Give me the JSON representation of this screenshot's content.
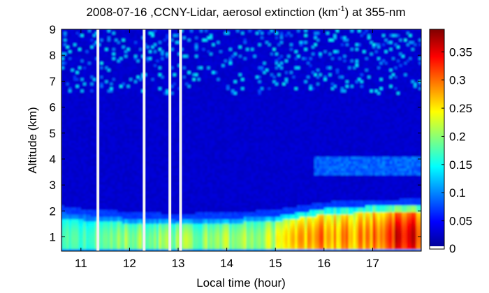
{
  "chart_data": {
    "type": "heatmap",
    "title": "2008-07-16 ,CCNY-Lidar, aerosol extinction (km",
    "title_exponent": "-1",
    "title_suffix": ") at 355-nm",
    "xlabel": "Local time (hour)",
    "ylabel": "Altitude (km)",
    "xlim": [
      10.6,
      18.0
    ],
    "ylim": [
      0.45,
      9.0
    ],
    "x_ticks": [
      "11",
      "12",
      "13",
      "14",
      "15",
      "16",
      "17"
    ],
    "y_ticks": [
      "1",
      "2",
      "3",
      "4",
      "5",
      "6",
      "7",
      "8",
      "9"
    ],
    "colorbar": {
      "range": [
        0,
        0.39
      ],
      "ticks": [
        "0",
        "0.05",
        "0.1",
        "0.15",
        "0.2",
        "0.25",
        "0.3",
        "0.35"
      ]
    },
    "data_gaps_hour": [
      11.35,
      12.3,
      12.83,
      13.05
    ],
    "boundary_layer": {
      "hours": [
        10.6,
        11.0,
        11.5,
        12.0,
        12.5,
        13.0,
        13.5,
        14.0,
        14.5,
        15.0,
        15.5,
        16.0,
        16.5,
        17.0,
        17.5,
        18.0
      ],
      "top_km": [
        1.95,
        1.85,
        1.8,
        1.72,
        1.68,
        1.65,
        1.68,
        1.72,
        1.75,
        1.8,
        1.95,
        2.1,
        2.15,
        2.2,
        2.2,
        2.25
      ],
      "peak_extinction": [
        0.17,
        0.18,
        0.2,
        0.21,
        0.2,
        0.2,
        0.2,
        0.21,
        0.2,
        0.22,
        0.27,
        0.28,
        0.28,
        0.3,
        0.36,
        0.34
      ]
    },
    "elevated_layer": {
      "hours": [
        15.8,
        18.0
      ],
      "altitude_km": [
        3.4,
        4.1
      ],
      "extinction": 0.07
    },
    "background_extinction": 0.03
  }
}
